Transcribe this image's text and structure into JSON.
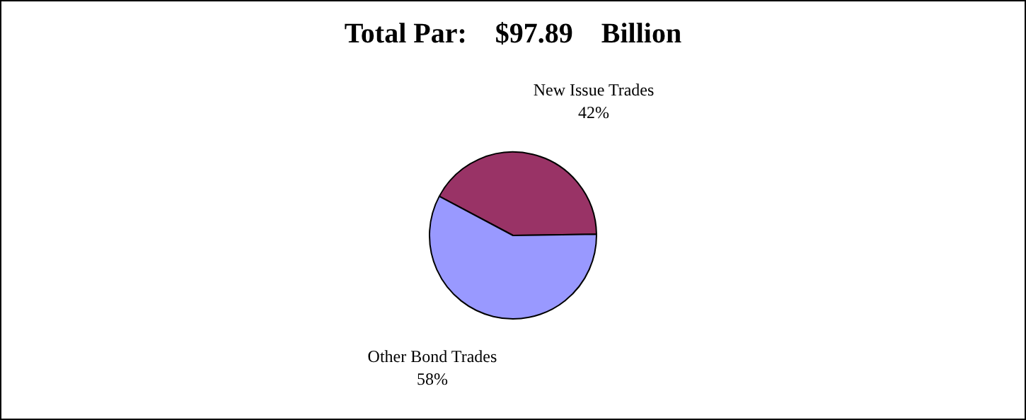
{
  "chart_data": {
    "type": "pie",
    "title": "Total Par:    $97.89    Billion",
    "categories": [
      "New Issue Trades",
      "Other Bond Trades"
    ],
    "values": [
      42,
      58
    ],
    "colors": [
      "#993366",
      "#9999ff"
    ],
    "value_labels": [
      "42%",
      "58%"
    ],
    "legend": false
  }
}
